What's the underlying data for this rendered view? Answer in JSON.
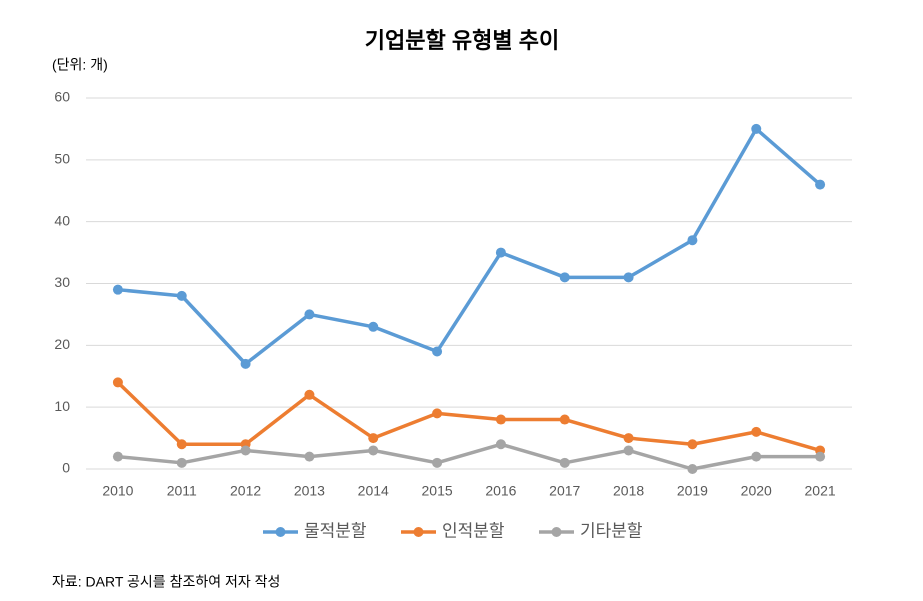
{
  "chart_data": {
    "type": "line",
    "title": "기업분할 유형별 추이",
    "unit_note": "(단위: 개)",
    "source": "자료:  DART 공시를 참조하여 저자 작성",
    "categories": [
      "2010",
      "2011",
      "2012",
      "2013",
      "2014",
      "2015",
      "2016",
      "2017",
      "2018",
      "2019",
      "2020",
      "2021"
    ],
    "series": [
      {
        "name": "물적분할",
        "color": "#5b9bd5",
        "values": [
          29,
          28,
          17,
          25,
          23,
          19,
          35,
          31,
          31,
          37,
          55,
          46
        ]
      },
      {
        "name": "인적분할",
        "color": "#ed7d31",
        "values": [
          14,
          4,
          4,
          12,
          5,
          9,
          8,
          8,
          5,
          4,
          6,
          3
        ]
      },
      {
        "name": "기타분할",
        "color": "#a5a5a5",
        "values": [
          2,
          1,
          3,
          2,
          3,
          1,
          4,
          1,
          3,
          0,
          2,
          2
        ]
      }
    ],
    "ylim": [
      0,
      60
    ],
    "yticks": [
      0,
      10,
      20,
      30,
      40,
      50,
      60
    ],
    "grid": true,
    "legend": "bottom"
  }
}
